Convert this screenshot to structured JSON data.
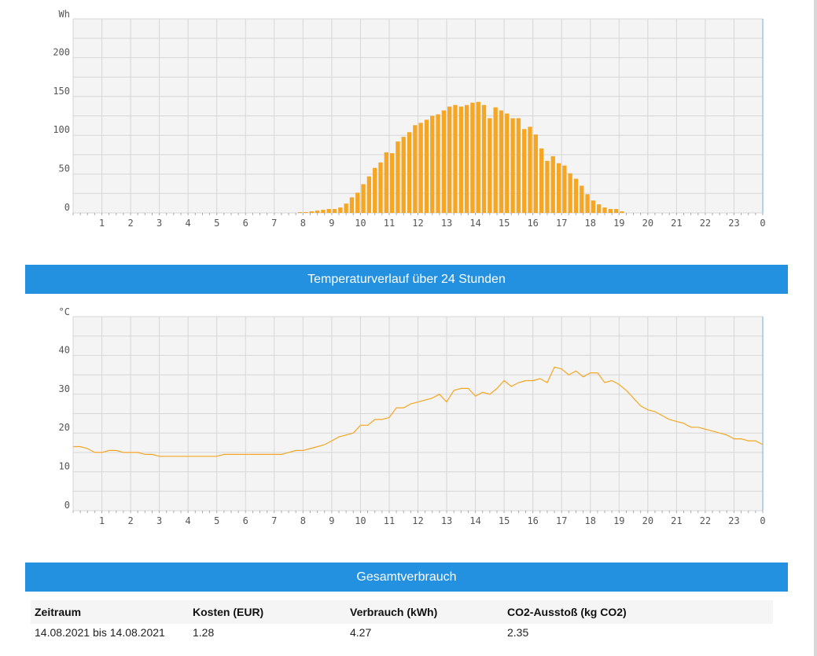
{
  "chart_data": [
    {
      "type": "bar",
      "unit": "Wh",
      "ylim": [
        0,
        250
      ],
      "y_ticks": [
        "0",
        "50",
        "100",
        "150",
        "200"
      ],
      "x_ticks": [
        "1",
        "2",
        "3",
        "4",
        "5",
        "6",
        "7",
        "8",
        "9",
        "10",
        "11",
        "12",
        "13",
        "14",
        "15",
        "16",
        "17",
        "18",
        "19",
        "20",
        "21",
        "22",
        "23",
        "0"
      ],
      "color": "#f5a623",
      "grid": true,
      "values": [
        0,
        0,
        0,
        0,
        0,
        0,
        0,
        0,
        0,
        0,
        0,
        0,
        0,
        0,
        0,
        0,
        0,
        0,
        0,
        0,
        0,
        0,
        0,
        0,
        0,
        0,
        0,
        0,
        0,
        0,
        0,
        0,
        0,
        0,
        0,
        0,
        0,
        0,
        0,
        1,
        1,
        2,
        3,
        4,
        5,
        5,
        7,
        12,
        20,
        26,
        37,
        47,
        58,
        65,
        78,
        77,
        92,
        98,
        104,
        113,
        116,
        120,
        125,
        127,
        132,
        137,
        139,
        137,
        139,
        142,
        143,
        139,
        122,
        136,
        132,
        128,
        122,
        122,
        108,
        111,
        101,
        83,
        67,
        73,
        64,
        61,
        51,
        44,
        35,
        24,
        16,
        11,
        7,
        5,
        5,
        2,
        0,
        0,
        0,
        0,
        0,
        0,
        0,
        0,
        0,
        0,
        0,
        0,
        0,
        0,
        0,
        0,
        0,
        0,
        0,
        0,
        0,
        0,
        0,
        0
      ]
    },
    {
      "type": "line",
      "unit": "°C",
      "ylim": [
        0,
        50
      ],
      "y_ticks": [
        "0",
        "10",
        "20",
        "30",
        "40"
      ],
      "x_ticks": [
        "1",
        "2",
        "3",
        "4",
        "5",
        "6",
        "7",
        "8",
        "9",
        "10",
        "11",
        "12",
        "13",
        "14",
        "15",
        "16",
        "17",
        "18",
        "19",
        "20",
        "21",
        "22",
        "23",
        "0"
      ],
      "color": "#f5a623",
      "grid": true,
      "points": [
        [
          0,
          16.5
        ],
        [
          0.25,
          16.5
        ],
        [
          0.5,
          16
        ],
        [
          0.75,
          15
        ],
        [
          1,
          15
        ],
        [
          1.25,
          15.5
        ],
        [
          1.5,
          15.5
        ],
        [
          1.75,
          15
        ],
        [
          2,
          15
        ],
        [
          2.25,
          15
        ],
        [
          2.5,
          14.5
        ],
        [
          2.75,
          14.5
        ],
        [
          3,
          14
        ],
        [
          4,
          14
        ],
        [
          5,
          14
        ],
        [
          5.25,
          14.5
        ],
        [
          6,
          14.5
        ],
        [
          7,
          14.5
        ],
        [
          7.25,
          14.5
        ],
        [
          7.5,
          15
        ],
        [
          7.75,
          15.5
        ],
        [
          8,
          15.5
        ],
        [
          8.25,
          16
        ],
        [
          8.5,
          16.5
        ],
        [
          8.75,
          17
        ],
        [
          9,
          18
        ],
        [
          9.25,
          19
        ],
        [
          9.5,
          19.5
        ],
        [
          9.75,
          20
        ],
        [
          10,
          22
        ],
        [
          10.25,
          22
        ],
        [
          10.5,
          23.5
        ],
        [
          10.75,
          23.5
        ],
        [
          11,
          24
        ],
        [
          11.25,
          26.5
        ],
        [
          11.5,
          26.5
        ],
        [
          11.75,
          27.5
        ],
        [
          12,
          28
        ],
        [
          12.25,
          28.5
        ],
        [
          12.5,
          29
        ],
        [
          12.75,
          30
        ],
        [
          13,
          28
        ],
        [
          13.25,
          31
        ],
        [
          13.5,
          31.5
        ],
        [
          13.75,
          31.5
        ],
        [
          14,
          29.5
        ],
        [
          14.25,
          30.5
        ],
        [
          14.5,
          30
        ],
        [
          14.75,
          31.5
        ],
        [
          15,
          33.5
        ],
        [
          15.25,
          32
        ],
        [
          15.5,
          33
        ],
        [
          15.75,
          33.5
        ],
        [
          16,
          33.5
        ],
        [
          16.25,
          34
        ],
        [
          16.5,
          33
        ],
        [
          16.75,
          37
        ],
        [
          17,
          36.5
        ],
        [
          17.25,
          35
        ],
        [
          17.5,
          36
        ],
        [
          17.75,
          34.5
        ],
        [
          18,
          35.5
        ],
        [
          18.25,
          35.5
        ],
        [
          18.5,
          33
        ],
        [
          18.75,
          33.5
        ],
        [
          19,
          32.5
        ],
        [
          19.25,
          31
        ],
        [
          19.5,
          29
        ],
        [
          19.75,
          27
        ],
        [
          20,
          26
        ],
        [
          20.25,
          25.5
        ],
        [
          20.5,
          24.5
        ],
        [
          20.75,
          23.5
        ],
        [
          21,
          23
        ],
        [
          21.25,
          22.5
        ],
        [
          21.5,
          21.5
        ],
        [
          21.75,
          21.5
        ],
        [
          22,
          21
        ],
        [
          22.25,
          20.5
        ],
        [
          22.5,
          20
        ],
        [
          22.75,
          19.5
        ],
        [
          23,
          18.5
        ],
        [
          23.25,
          18.5
        ],
        [
          23.5,
          18
        ],
        [
          23.75,
          18
        ],
        [
          24,
          17
        ]
      ]
    }
  ],
  "sections": {
    "temperature_title": "Temperaturverlauf über 24 Stunden",
    "total_title": "Gesamtverbrauch"
  },
  "summary": {
    "headers": [
      "Zeitraum",
      "Kosten (EUR)",
      "Verbrauch (kWh)",
      "CO2-Ausstoß (kg CO2)"
    ],
    "row": [
      "14.08.2021 bis 14.08.2021",
      "1.28",
      "4.27",
      "2.35"
    ]
  }
}
